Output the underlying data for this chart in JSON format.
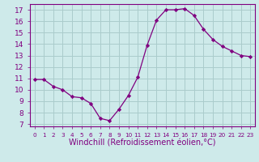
{
  "x": [
    0,
    1,
    2,
    3,
    4,
    5,
    6,
    7,
    8,
    9,
    10,
    11,
    12,
    13,
    14,
    15,
    16,
    17,
    18,
    19,
    20,
    21,
    22,
    23
  ],
  "y": [
    10.9,
    10.9,
    10.3,
    10.0,
    9.4,
    9.3,
    8.8,
    7.5,
    7.3,
    8.3,
    9.5,
    11.1,
    13.9,
    16.1,
    17.0,
    17.0,
    17.1,
    16.5,
    15.3,
    14.4,
    13.8,
    13.4,
    13.0,
    12.9
  ],
  "line_color": "#800080",
  "marker": "D",
  "marker_size": 2.2,
  "bg_color": "#ceeaea",
  "grid_color": "#aacccc",
  "xlabel": "Windchill (Refroidissement éolien,°C)",
  "xlabel_color": "#800080",
  "xlabel_fontsize": 7,
  "ylabel_ticks": [
    7,
    8,
    9,
    10,
    11,
    12,
    13,
    14,
    15,
    16,
    17
  ],
  "xlim": [
    -0.5,
    23.5
  ],
  "ylim": [
    6.8,
    17.5
  ],
  "tick_fontsize": 6.5,
  "tick_color": "#800080",
  "spine_color": "#800080",
  "xticks": [
    0,
    1,
    2,
    3,
    4,
    5,
    6,
    7,
    8,
    9,
    10,
    11,
    12,
    13,
    14,
    15,
    16,
    17,
    18,
    19,
    20,
    21,
    22,
    23
  ]
}
